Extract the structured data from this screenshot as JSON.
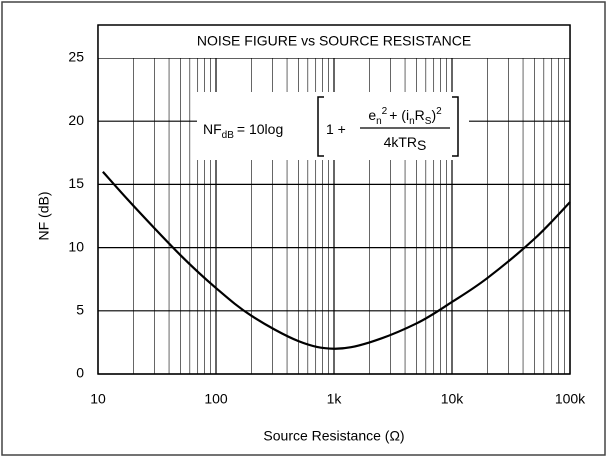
{
  "chart_data": {
    "type": "line",
    "title": "NOISE FIGURE vs SOURCE RESISTANCE",
    "x_label": "Source Resistance (Ω)",
    "y_label": "NF (dB)",
    "xscale": "log",
    "grid": true,
    "xlim": [
      10,
      100000
    ],
    "ylim": [
      0,
      25
    ],
    "xticks": [
      {
        "value": 10,
        "label": "10"
      },
      {
        "value": 100,
        "label": "100"
      },
      {
        "value": 1000,
        "label": "1k"
      },
      {
        "value": 10000,
        "label": "10k"
      },
      {
        "value": 100000,
        "label": "100k"
      }
    ],
    "xticks_minor": [
      20,
      30,
      40,
      50,
      60,
      70,
      80,
      90,
      200,
      300,
      400,
      500,
      600,
      700,
      800,
      900,
      2000,
      3000,
      4000,
      5000,
      6000,
      7000,
      8000,
      9000,
      20000,
      30000,
      40000,
      50000,
      60000,
      70000,
      80000,
      90000
    ],
    "yticks": [
      0,
      5,
      10,
      15,
      20,
      25
    ],
    "series": [
      {
        "color": "#000000",
        "x": [
          11,
          20,
          50,
          100,
          200,
          500,
          1000,
          2000,
          5000,
          10000,
          20000,
          50000,
          100000
        ],
        "values": [
          16.0,
          13.3,
          9.4,
          6.8,
          4.6,
          2.6,
          2.0,
          2.5,
          4.0,
          5.7,
          7.6,
          10.7,
          13.6
        ]
      }
    ],
    "annotation": {
      "lhs": "NF",
      "lhs_sub": "dB",
      "eq": "= 10log",
      "one_plus": "1 +",
      "num": [
        "e",
        "n",
        "2",
        "+ (i",
        "n",
        "R",
        "S",
        ")",
        "2"
      ],
      "den": [
        "4kTR",
        "S"
      ]
    }
  }
}
